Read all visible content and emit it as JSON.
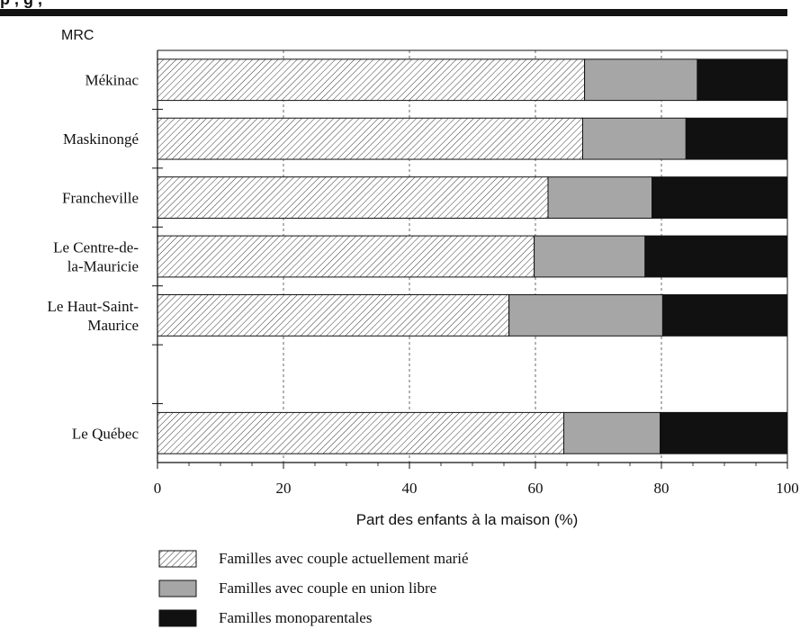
{
  "header": {
    "partial_title": "p    , g                                      ,"
  },
  "chart_data": {
    "type": "bar",
    "stacked": true,
    "orientation": "horizontal",
    "y_axis_header": "MRC",
    "xlabel": "Part des enfants à la maison (%)",
    "xlim": [
      0,
      100
    ],
    "xticks": [
      0,
      20,
      40,
      60,
      80,
      100
    ],
    "grid": "vertical dashed at 20, 40, 60, 80",
    "legend_placement": "bottom-left",
    "categories": [
      "Mékinac",
      "Maskinongé",
      "Francheville",
      "Le Centre-de-\nla-Mauricie",
      "Le Haut-Saint-\nMaurice",
      "",
      "Le Québec"
    ],
    "series": [
      {
        "name": "Familles avec couple actuellement marié",
        "style": "hatched",
        "color": "#ffffff",
        "values": [
          67.8,
          67.5,
          62.0,
          59.8,
          55.8,
          null,
          64.5
        ]
      },
      {
        "name": "Familles avec couple en union libre",
        "style": "solid",
        "color": "#a6a6a6",
        "values": [
          17.9,
          16.4,
          16.5,
          17.6,
          24.4,
          null,
          15.3
        ]
      },
      {
        "name": "Familles monoparentales",
        "style": "solid",
        "color": "#111111",
        "values": [
          14.3,
          16.1,
          21.5,
          22.6,
          19.8,
          null,
          20.2
        ]
      }
    ]
  }
}
